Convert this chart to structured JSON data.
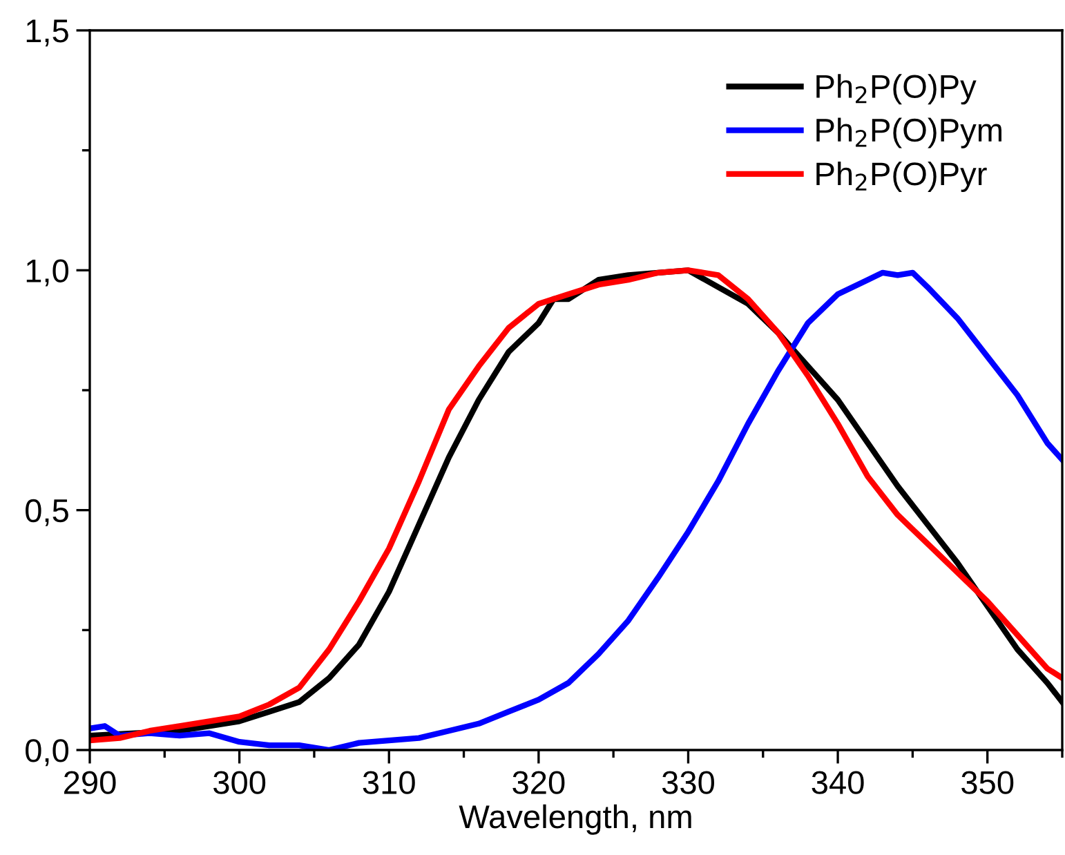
{
  "chart_data": {
    "type": "line",
    "xlabel": "Wavelength, nm",
    "xlim": [
      290,
      355
    ],
    "xticks": [
      290,
      300,
      310,
      320,
      330,
      340,
      350
    ],
    "ylim": [
      0,
      1.5
    ],
    "yticks": [
      {
        "value": 0,
        "label": "0,0"
      },
      {
        "value": 0.5,
        "label": "0,5"
      },
      {
        "value": 1.0,
        "label": "1,0"
      },
      {
        "value": 1.5,
        "label": "1,5"
      }
    ],
    "grid": false,
    "legend": "top right",
    "marker": "none",
    "line_style": "solid",
    "series": [
      {
        "name": "Ph$_{2}$P(O)Py",
        "color": "#000000",
        "x": [
          290,
          296,
          300,
          302,
          304,
          306,
          308,
          310,
          312,
          314,
          316,
          318,
          320,
          321,
          322,
          324,
          326,
          328,
          330,
          332,
          334,
          336,
          338,
          340,
          342,
          344,
          346,
          348,
          350,
          352,
          354,
          355
        ],
        "values": [
          0.03,
          0.04,
          0.06,
          0.08,
          0.1,
          0.15,
          0.22,
          0.33,
          0.47,
          0.61,
          0.73,
          0.83,
          0.89,
          0.94,
          0.94,
          0.98,
          0.99,
          0.995,
          1.0,
          0.965,
          0.93,
          0.87,
          0.8,
          0.73,
          0.64,
          0.55,
          0.47,
          0.39,
          0.3,
          0.21,
          0.14,
          0.1
        ]
      },
      {
        "name": "Ph$_{2}$P(O)Pym",
        "color": "#0000ff",
        "x": [
          290,
          291,
          292,
          294,
          296,
          298,
          300,
          302,
          304,
          306,
          308,
          310,
          312,
          314,
          316,
          318,
          320,
          322,
          324,
          326,
          328,
          330,
          332,
          334,
          336,
          338,
          340,
          342,
          343,
          344,
          345,
          346,
          348,
          350,
          352,
          354,
          355
        ],
        "values": [
          0.045,
          0.05,
          0.03,
          0.035,
          0.03,
          0.035,
          0.017,
          0.01,
          0.01,
          0.0,
          0.015,
          0.02,
          0.025,
          0.04,
          0.055,
          0.08,
          0.105,
          0.14,
          0.2,
          0.27,
          0.36,
          0.455,
          0.56,
          0.68,
          0.79,
          0.89,
          0.95,
          0.98,
          0.995,
          0.99,
          0.995,
          0.965,
          0.9,
          0.82,
          0.74,
          0.64,
          0.605
        ]
      },
      {
        "name": "Ph$_{2}$P(O)Pyr",
        "color": "#ff0000",
        "x": [
          290,
          292,
          294,
          296,
          298,
          300,
          302,
          304,
          306,
          308,
          310,
          312,
          314,
          316,
          318,
          320,
          322,
          324,
          326,
          328,
          330,
          332,
          334,
          336,
          338,
          340,
          342,
          344,
          346,
          348,
          350,
          352,
          354,
          355
        ],
        "values": [
          0.02,
          0.025,
          0.04,
          0.05,
          0.06,
          0.07,
          0.095,
          0.13,
          0.21,
          0.31,
          0.42,
          0.56,
          0.71,
          0.8,
          0.88,
          0.93,
          0.95,
          0.97,
          0.98,
          0.995,
          1.0,
          0.99,
          0.94,
          0.87,
          0.78,
          0.68,
          0.57,
          0.49,
          0.43,
          0.37,
          0.31,
          0.24,
          0.17,
          0.15
        ]
      }
    ]
  }
}
